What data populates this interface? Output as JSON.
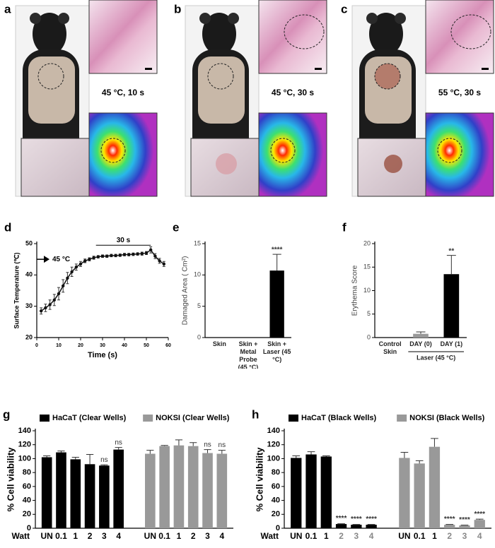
{
  "panels": [
    {
      "label": "a",
      "condition": "45 °C, 10 s"
    },
    {
      "label": "b",
      "condition": "45 °C, 30 s"
    },
    {
      "label": "c",
      "condition": "55 °C, 30 s"
    }
  ],
  "chart_data": [
    {
      "type": "line",
      "label": "d",
      "xlabel": "Time (s)",
      "ylabel": "Surface Temperature (℃)",
      "x": [
        2,
        4,
        6,
        8,
        10,
        12,
        14,
        16,
        18,
        20,
        22,
        24,
        26,
        28,
        30,
        32,
        34,
        36,
        38,
        40,
        42,
        44,
        46,
        48,
        50,
        52,
        54,
        56,
        58
      ],
      "values": [
        28.5,
        29.5,
        30.5,
        32,
        34,
        36.5,
        39,
        41,
        42.5,
        43.5,
        44.5,
        45,
        45.5,
        45.8,
        46,
        46,
        46.2,
        46.2,
        46.3,
        46.5,
        46.5,
        46.6,
        46.7,
        46.8,
        47,
        48,
        46,
        44.5,
        43.5
      ],
      "errors": [
        1,
        1.2,
        1.5,
        1.8,
        2,
        2,
        1.8,
        1.5,
        1,
        0.8,
        0.6,
        0.5,
        0.5,
        0.4,
        0.4,
        0.4,
        0.4,
        0.4,
        0.4,
        0.4,
        0.4,
        0.4,
        0.4,
        0.5,
        0.5,
        1,
        0.8,
        0.8,
        0.8
      ],
      "color": "#111",
      "xlim": [
        0,
        60
      ],
      "ylim": [
        20,
        50
      ],
      "xticks": [
        0,
        10,
        20,
        30,
        40,
        50,
        60
      ],
      "yticks": [
        20,
        30,
        40,
        50
      ],
      "annotations": [
        {
          "text": "45 °C",
          "y": 45
        },
        {
          "text": "30 s",
          "x0": 27,
          "x1": 52,
          "y": 49.5
        }
      ]
    },
    {
      "type": "bar",
      "label": "e",
      "ylabel": "Damaged Area ( Cm²)",
      "categories": [
        "Skin",
        "Skin + Metal Probe (45 °C)",
        "Skin + Laser (45 °C)"
      ],
      "values": [
        0,
        0,
        10.7
      ],
      "errors": [
        0,
        0,
        2.6
      ],
      "colors": [
        "#000",
        "#000",
        "#000"
      ],
      "sig": [
        null,
        null,
        "****"
      ],
      "ylim": [
        0,
        15
      ],
      "yticks": [
        0,
        5,
        10,
        15
      ]
    },
    {
      "type": "bar",
      "label": "f",
      "ylabel": "Erythema Score",
      "categories": [
        "Control Skin",
        "DAY (0)",
        "DAY (1)"
      ],
      "values": [
        0,
        0.8,
        13.5
      ],
      "errors": [
        0,
        0.4,
        4
      ],
      "colors": [
        "#000",
        "#999",
        "#000"
      ],
      "sig": [
        null,
        null,
        "**"
      ],
      "group_label": "Laser (45 °C)",
      "ylim": [
        0,
        20
      ],
      "yticks": [
        0,
        5,
        10,
        15,
        20
      ]
    },
    {
      "type": "grouped_bar",
      "label": "g",
      "ylabel": "% Cell viability",
      "xlabel": "Watt",
      "categories": [
        "UN",
        "0.1",
        "1",
        "2",
        "3",
        "4"
      ],
      "category_colors": [
        "#000",
        "#000",
        "#000",
        "#000",
        "#000",
        "#000"
      ],
      "series": [
        {
          "name": "HaCaT (Clear Wells)",
          "color": "#000",
          "values": [
            102,
            109,
            99,
            92,
            90,
            113
          ],
          "errors": [
            2,
            2,
            3,
            14,
            1,
            3
          ],
          "sig": [
            null,
            null,
            null,
            null,
            "ns",
            "ns"
          ]
        },
        {
          "name": "NOKSI (Clear Wells)",
          "color": "#999",
          "values": [
            107,
            118,
            119,
            118,
            108,
            107
          ],
          "errors": [
            5,
            1,
            8,
            5,
            5,
            5
          ],
          "sig": [
            null,
            null,
            null,
            null,
            "ns",
            "ns"
          ]
        }
      ],
      "ylim": [
        0,
        140
      ],
      "yticks": [
        0,
        20,
        40,
        60,
        80,
        100,
        120,
        140
      ]
    },
    {
      "type": "grouped_bar",
      "label": "h",
      "ylabel": "% Cell viability",
      "xlabel": "Watt",
      "categories": [
        "UN",
        "0.1",
        "1",
        "2",
        "3",
        "4"
      ],
      "category_colors": [
        "#000",
        "#000",
        "#000",
        "#888",
        "#888",
        "#888"
      ],
      "series": [
        {
          "name": "HaCaT (Black Wells)",
          "color": "#000",
          "values": [
            101,
            106,
            103,
            6,
            5,
            5
          ],
          "errors": [
            3,
            4,
            1,
            0.5,
            0.5,
            0.5
          ],
          "sig": [
            null,
            null,
            null,
            "****",
            "****",
            "****"
          ]
        },
        {
          "name": "NOKSI (Black Wells)",
          "color": "#999",
          "values": [
            101,
            93,
            117,
            5,
            4,
            12
          ],
          "errors": [
            8,
            4,
            12,
            0.5,
            0.5,
            1
          ],
          "sig": [
            null,
            null,
            null,
            "****",
            "****",
            "****"
          ]
        }
      ],
      "ylim": [
        0,
        140
      ],
      "yticks": [
        0,
        20,
        40,
        60,
        80,
        100,
        120,
        140
      ]
    }
  ]
}
